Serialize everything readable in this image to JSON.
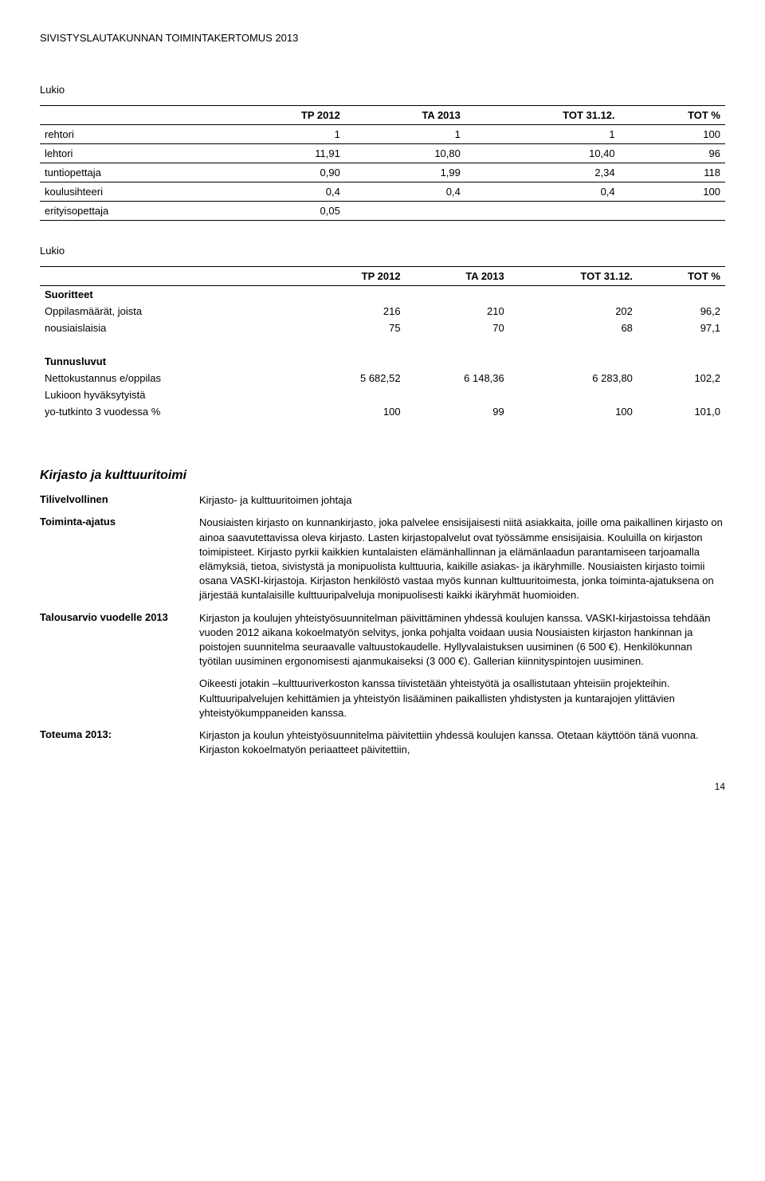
{
  "header": "SIVISTYSLAUTAKUNNAN TOIMINTAKERTOMUS 2013",
  "section1_label": "Lukio",
  "table1": {
    "columns": [
      "",
      "TP 2012",
      "TA 2013",
      "TOT 31.12.",
      "TOT %"
    ],
    "rows": [
      [
        "rehtori",
        "1",
        "1",
        "1",
        "100"
      ],
      [
        "lehtori",
        "11,91",
        "10,80",
        "10,40",
        "96"
      ],
      [
        "tuntiopettaja",
        "0,90",
        "1,99",
        "2,34",
        "118"
      ],
      [
        "koulusihteeri",
        "0,4",
        "0,4",
        "0,4",
        "100"
      ],
      [
        "erityisopettaja",
        "0,05",
        "",
        "",
        ""
      ]
    ]
  },
  "section2_label": "Lukio",
  "table2": {
    "columns": [
      "",
      "TP 2012",
      "TA 2013",
      "TOT 31.12.",
      "TOT %"
    ],
    "groups": [
      {
        "head": "Suoritteet",
        "rows": [
          [
            "Oppilasmäärät, joista",
            "216",
            "210",
            "202",
            "96,2"
          ],
          [
            "nousiaislaisia",
            "75",
            "70",
            "68",
            "97,1"
          ]
        ]
      },
      {
        "head": "Tunnusluvut",
        "rows": [
          [
            "Nettokustannus e/oppilas",
            "5 682,52",
            "6 148,36",
            "6 283,80",
            "102,2"
          ],
          [
            "Lukioon hyväksytyistä",
            "",
            "",
            "",
            ""
          ],
          [
            "yo-tutkinto 3 vuodessa %",
            "100",
            "99",
            "100",
            "101,0"
          ]
        ]
      }
    ]
  },
  "subsection_title": "Kirjasto ja kulttuuritoimi",
  "kv": [
    {
      "label": "Tilivelvollinen",
      "text": "Kirjasto- ja kulttuuritoimen johtaja"
    },
    {
      "label": "Toiminta-ajatus",
      "text": "Nousiaisten kirjasto on kunnankirjasto, joka palvelee ensisijaisesti niitä asiakkaita, joille oma paikallinen kirjasto on ainoa saavutettavissa oleva kirjasto. Lasten kirjastopalvelut ovat työssämme ensisijaisia. Kouluilla on kirjaston toimipisteet. Kirjasto pyrkii kaikkien kuntalaisten elämänhallinnan ja elämänlaadun parantamiseen tarjoamalla elämyksiä, tietoa, sivistystä ja monipuolista kulttuuria, kaikille asiakas- ja ikäryhmille. Nousiaisten kirjasto toimii osana VASKI-kirjastoja. Kirjaston henkilöstö vastaa myös kunnan kulttuuritoimesta, jonka toiminta-ajatuksena on järjestää kuntalaisille kulttuuripalveluja monipuolisesti kaikki ikäryhmät huomioiden."
    },
    {
      "label": "Talousarvio vuodelle 2013",
      "text": "Kirjaston ja koulujen yhteistyösuunnitelman päivittäminen yhdessä koulujen kanssa. VASKI-kirjastoissa tehdään vuoden 2012 aikana kokoelmatyön selvitys, jonka pohjalta voidaan uusia Nousiaisten kirjaston hankinnan ja poistojen suunnitelma seuraavalle valtuustokaudelle. Hyllyvalaistuksen uusiminen (6 500 €). Henkilökunnan työtilan uusiminen ergonomisesti ajanmukaiseksi (3 000 €). Gallerian kiinnityspintojen uusiminen."
    }
  ],
  "para_extra": "Oikeesti jotakin –kulttuuriverkoston kanssa tiivistetään yhteistyötä ja osallistutaan yhteisiin projekteihin. Kulttuuripalvelujen kehittämien ja yhteistyön lisääminen paikallisten yhdistysten ja kuntarajojen ylittävien yhteistyökumppaneiden kanssa.",
  "toteuma": {
    "label": "Toteuma 2013:",
    "text": "Kirjaston ja koulun yhteistyösuunnitelma päivitettiin yhdessä koulujen kanssa. Otetaan käyttöön tänä vuonna. Kirjaston kokoelmatyön periaatteet päivitettiin,"
  },
  "page_number": "14"
}
